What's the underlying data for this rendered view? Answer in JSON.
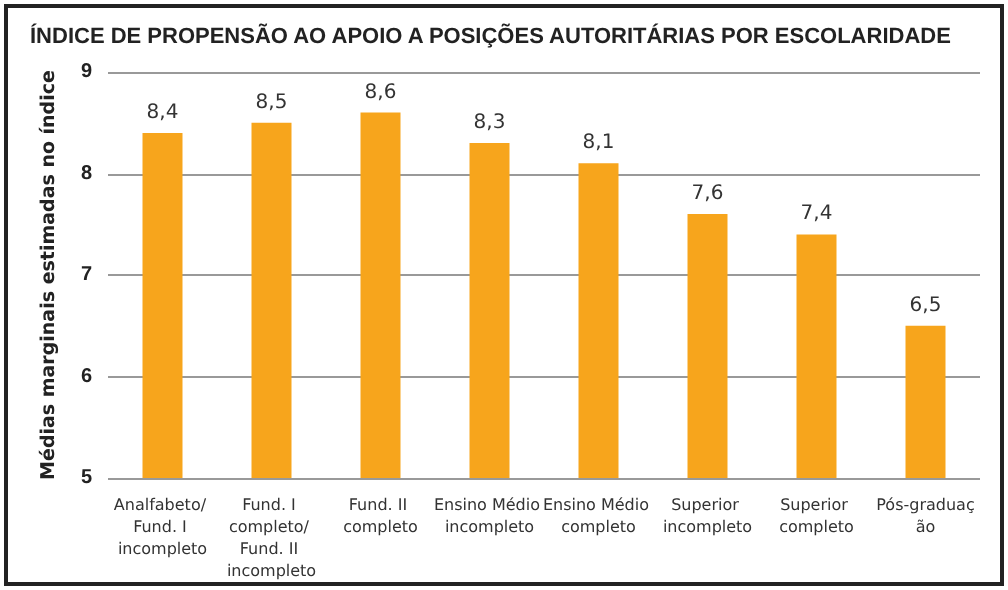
{
  "chart_data": {
    "type": "bar",
    "title": "ÍNDICE DE PROPENSÃO AO APOIO A POSIÇÕES AUTORITÁRIAS POR ESCOLARIDADE",
    "ylabel": "Médias marginais estimadas no índice",
    "categories": [
      "Analfabeto/ Fund. I incompleto",
      "Fund. I completo/ Fund. II incompleto",
      "Fund. II completo",
      "Ensino Médio incompleto",
      "Ensino Médio completo",
      "Superior incompleto",
      "Superior completo",
      "Pós-graduação"
    ],
    "values": [
      8.4,
      8.5,
      8.6,
      8.3,
      8.1,
      7.6,
      7.4,
      6.5
    ],
    "value_labels": [
      "8,4",
      "8,5",
      "8,6",
      "8,3",
      "8,1",
      "7,6",
      "7,4",
      "6,5"
    ],
    "color": "#f7a51c",
    "ylim": [
      5,
      9
    ],
    "yticks": [
      5,
      6,
      7,
      8,
      9
    ],
    "grid": "y"
  }
}
